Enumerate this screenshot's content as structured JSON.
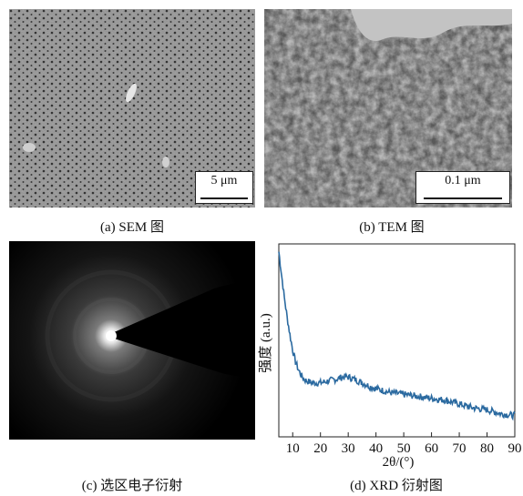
{
  "panels": {
    "a": {
      "caption": "(a) SEM 图",
      "scale_bar": "5 μm"
    },
    "b": {
      "caption": "(b) TEM 图",
      "scale_bar": "0.1 μm"
    },
    "c": {
      "caption": "(c) 选区电子衍射"
    },
    "d": {
      "caption": "(d) XRD 衍射图"
    }
  },
  "chart_data": {
    "type": "line",
    "xlabel": "2θ/(°)",
    "ylabel": "强度 (a.u.)",
    "xlim": [
      5,
      90
    ],
    "ylim": [
      0,
      1
    ],
    "xticks": [
      10,
      20,
      30,
      40,
      50,
      60,
      70,
      80,
      90
    ],
    "grid": false,
    "series": [
      {
        "color": "#2b6aa0",
        "x": [
          5,
          6,
          7,
          8,
          9,
          10,
          11,
          12,
          13,
          14,
          15,
          17,
          20,
          23,
          26,
          28,
          30,
          32,
          35,
          38,
          40,
          45,
          50,
          55,
          60,
          65,
          70,
          75,
          80,
          85,
          90
        ],
        "y": [
          0.96,
          0.84,
          0.72,
          0.62,
          0.53,
          0.45,
          0.39,
          0.35,
          0.32,
          0.3,
          0.29,
          0.28,
          0.28,
          0.29,
          0.3,
          0.31,
          0.31,
          0.3,
          0.28,
          0.26,
          0.25,
          0.23,
          0.22,
          0.21,
          0.2,
          0.19,
          0.17,
          0.15,
          0.14,
          0.12,
          0.11
        ]
      }
    ]
  }
}
